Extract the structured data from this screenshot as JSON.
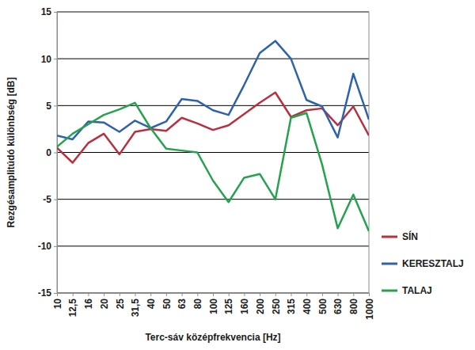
{
  "chart_data": {
    "type": "line",
    "x_label": "Terc-sáv középfrekvencia [Hz]",
    "y_label": "Rezgésamplitúdó különbség [dB]",
    "categories": [
      "10",
      "12,5",
      "16",
      "20",
      "25",
      "31,5",
      "40",
      "50",
      "63",
      "80",
      "100",
      "125",
      "160",
      "200",
      "250",
      "315",
      "400",
      "500",
      "630",
      "800",
      "1000"
    ],
    "series": [
      {
        "name": "SÍN",
        "color": "#b8303f",
        "values": [
          0.5,
          -1.1,
          1.0,
          2.0,
          -0.2,
          2.2,
          2.5,
          2.3,
          3.7,
          3.1,
          2.4,
          2.9,
          4.1,
          5.3,
          6.4,
          3.8,
          4.5,
          4.7,
          2.9,
          4.9,
          1.8
        ]
      },
      {
        "name": "KERESZTALJ",
        "color": "#2f62ad",
        "values": [
          1.8,
          1.4,
          3.3,
          3.2,
          2.2,
          3.4,
          2.6,
          3.3,
          5.7,
          5.5,
          4.5,
          4.0,
          7.2,
          10.6,
          11.9,
          10.0,
          5.6,
          4.9,
          1.6,
          8.4,
          3.5
        ]
      },
      {
        "name": "TALAJ",
        "color": "#25a24e",
        "values": [
          0.6,
          2.0,
          3.0,
          4.0,
          4.6,
          5.3,
          2.6,
          0.4,
          0.2,
          0.0,
          -3.0,
          -5.3,
          -2.7,
          -2.3,
          -5.0,
          3.7,
          4.2,
          -1.3,
          -8.1,
          -4.5,
          -8.4
        ]
      }
    ],
    "ylim": [
      -15,
      15
    ],
    "yticks": [
      -15,
      -10,
      -5,
      0,
      5,
      10,
      15
    ],
    "grid": true,
    "legend": "right"
  }
}
